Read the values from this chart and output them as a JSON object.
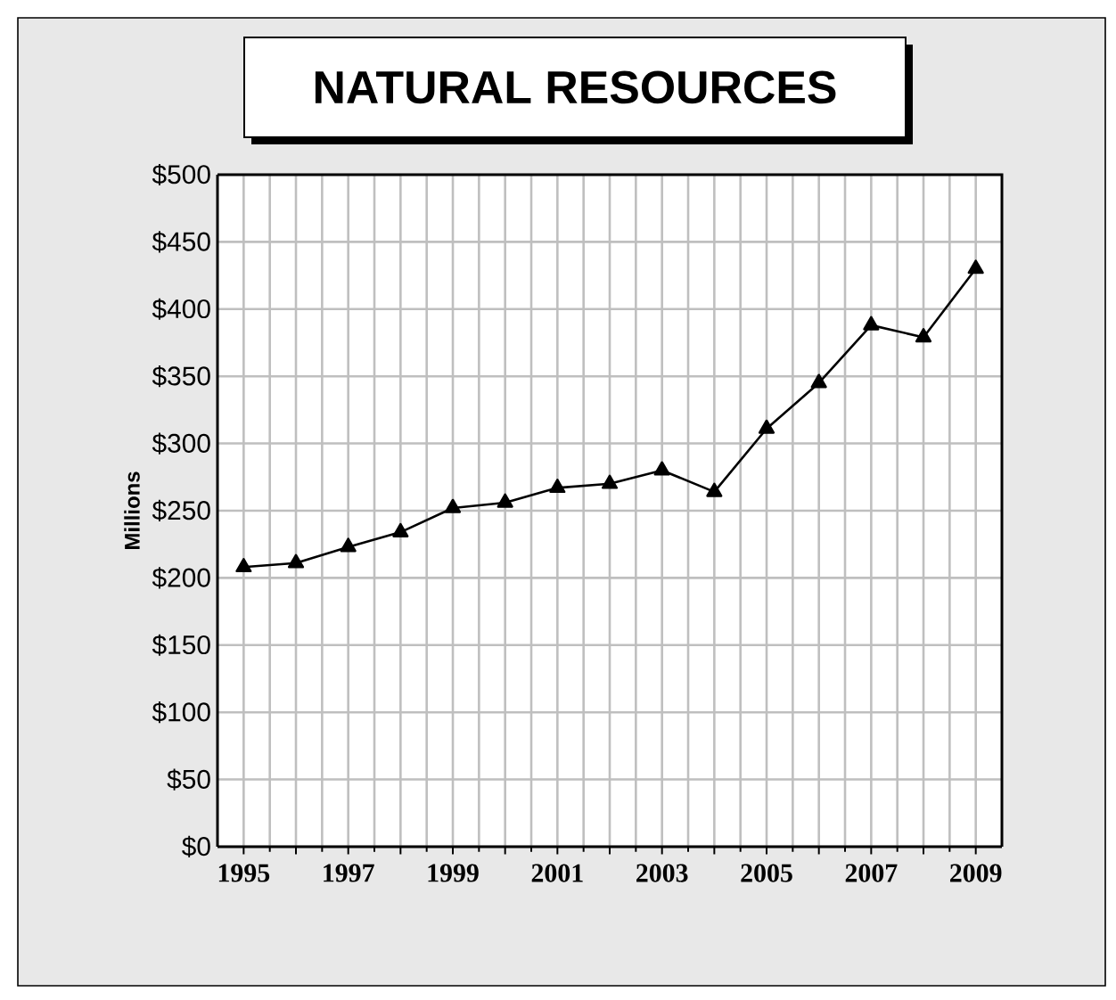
{
  "chart_data": {
    "type": "line",
    "title": "NATURAL RESOURCES",
    "ylabel": "Millions",
    "categories": [
      "1995",
      null,
      "1997",
      null,
      "1999",
      null,
      "2001",
      null,
      "2003",
      null,
      "2005",
      null,
      "2007",
      null,
      "2009"
    ],
    "series": [
      {
        "color": "#000000",
        "values": [
          208,
          211,
          223,
          234,
          252,
          256,
          267,
          270,
          280,
          264,
          311,
          345,
          388,
          379,
          430
        ]
      }
    ],
    "ylim": [
      0,
      500
    ],
    "yticks": [
      {
        "value": 0,
        "label": "$0"
      },
      {
        "value": 50,
        "label": "$50"
      },
      {
        "value": 100,
        "label": "$100"
      },
      {
        "value": 150,
        "label": "$150"
      },
      {
        "value": 200,
        "label": "$200"
      },
      {
        "value": 250,
        "label": "$250"
      },
      {
        "value": 300,
        "label": "$300"
      },
      {
        "value": 350,
        "label": "$350"
      },
      {
        "value": 400,
        "label": "$400"
      },
      {
        "value": 450,
        "label": "$450"
      },
      {
        "value": 500,
        "label": "$500"
      }
    ],
    "grid": true,
    "marker": "triangle",
    "line_style": "solid"
  }
}
